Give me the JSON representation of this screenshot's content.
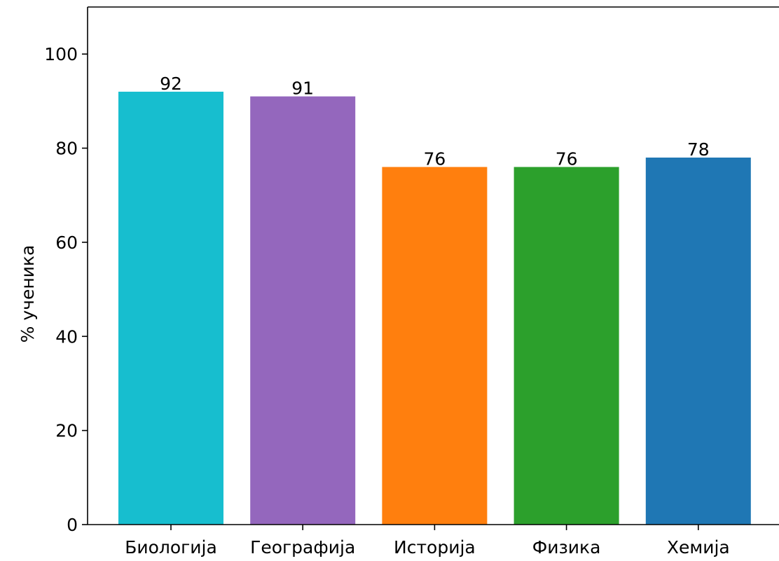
{
  "chart_data": {
    "type": "bar",
    "title": "",
    "xlabel": "",
    "ylabel": "% ученика",
    "categories": [
      "Биологија",
      "Географија",
      "Историја",
      "Физика",
      "Хемија"
    ],
    "values": [
      92,
      91,
      76,
      76,
      78
    ],
    "bar_labels": [
      "92",
      "91",
      "76",
      "76",
      "78"
    ],
    "colors": [
      "#17becf",
      "#9467bd",
      "#ff7f0e",
      "#2ca02c",
      "#1f77b4"
    ],
    "ylim": [
      0,
      110
    ],
    "yticks": [
      0,
      20,
      40,
      60,
      80,
      100
    ],
    "ytick_labels": [
      "0",
      "20",
      "40",
      "60",
      "80",
      "100"
    ],
    "grid": false,
    "legend": "none"
  }
}
